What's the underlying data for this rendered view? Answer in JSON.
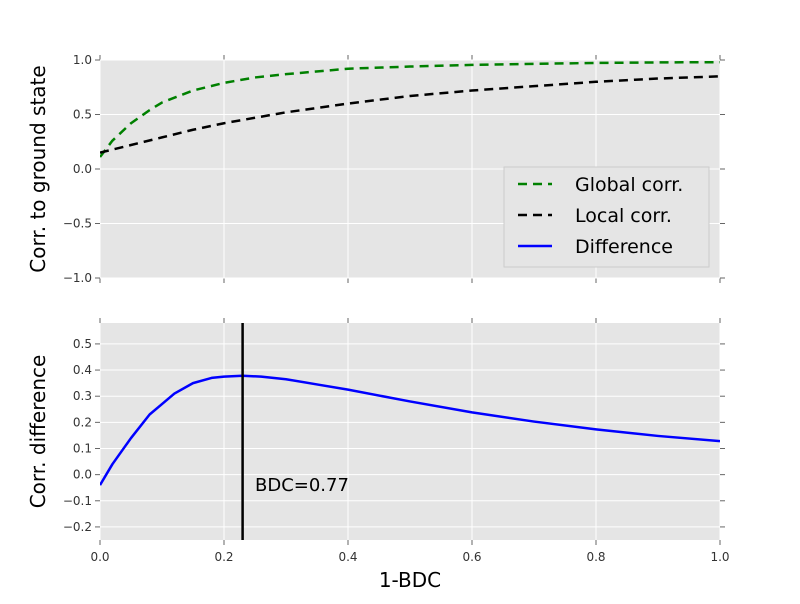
{
  "chart_data": [
    {
      "type": "line",
      "ylabel": "Corr. to ground state",
      "xlim": [
        0,
        1
      ],
      "ylim": [
        -1,
        1
      ],
      "xticks": [
        "",
        "",
        "",
        "",
        "",
        ""
      ],
      "yticks": [
        "−1.0",
        "−0.5",
        "0.0",
        "0.5",
        "1.0"
      ],
      "grid": true,
      "legend_position": "lower-right",
      "series": [
        {
          "name": "Global corr.",
          "color": "#008000",
          "style": "dashed",
          "x": [
            0,
            0.02,
            0.05,
            0.08,
            0.1,
            0.15,
            0.2,
            0.25,
            0.3,
            0.4,
            0.5,
            0.6,
            0.7,
            0.8,
            0.9,
            1.0
          ],
          "y": [
            0.11,
            0.26,
            0.42,
            0.54,
            0.61,
            0.72,
            0.79,
            0.84,
            0.87,
            0.92,
            0.94,
            0.955,
            0.965,
            0.973,
            0.978,
            0.98
          ]
        },
        {
          "name": "Local corr.",
          "color": "#000000",
          "style": "dashed",
          "x": [
            0,
            0.05,
            0.1,
            0.15,
            0.2,
            0.25,
            0.3,
            0.4,
            0.5,
            0.6,
            0.7,
            0.8,
            0.9,
            1.0
          ],
          "y": [
            0.15,
            0.22,
            0.29,
            0.36,
            0.42,
            0.47,
            0.52,
            0.6,
            0.67,
            0.72,
            0.76,
            0.8,
            0.83,
            0.85
          ]
        },
        {
          "name": "Difference",
          "color": "#0000ff",
          "style": "solid",
          "x": [],
          "y": []
        }
      ]
    },
    {
      "type": "line",
      "xlabel": "1-BDC",
      "ylabel": "Corr. difference",
      "xlim": [
        0,
        1
      ],
      "ylim": [
        -0.25,
        0.58
      ],
      "xticks": [
        "0.0",
        "0.2",
        "0.4",
        "0.6",
        "0.8",
        "1.0"
      ],
      "yticks": [
        "−0.2",
        "−0.1",
        "0.0",
        "0.1",
        "0.2",
        "0.3",
        "0.4",
        "0.5"
      ],
      "grid": true,
      "series": [
        {
          "name": "Difference",
          "color": "#0000ff",
          "style": "solid",
          "x": [
            0,
            0.02,
            0.05,
            0.08,
            0.1,
            0.12,
            0.15,
            0.18,
            0.2,
            0.23,
            0.26,
            0.3,
            0.35,
            0.4,
            0.5,
            0.6,
            0.7,
            0.8,
            0.9,
            1.0
          ],
          "y": [
            -0.04,
            0.04,
            0.14,
            0.23,
            0.27,
            0.31,
            0.35,
            0.37,
            0.375,
            0.378,
            0.375,
            0.365,
            0.345,
            0.325,
            0.28,
            0.238,
            0.203,
            0.173,
            0.148,
            0.128
          ]
        }
      ],
      "vline": {
        "x": 0.23,
        "color": "#000000"
      },
      "annotation": {
        "text": "BDC=0.77",
        "x": 0.25,
        "y": -0.04
      }
    }
  ]
}
